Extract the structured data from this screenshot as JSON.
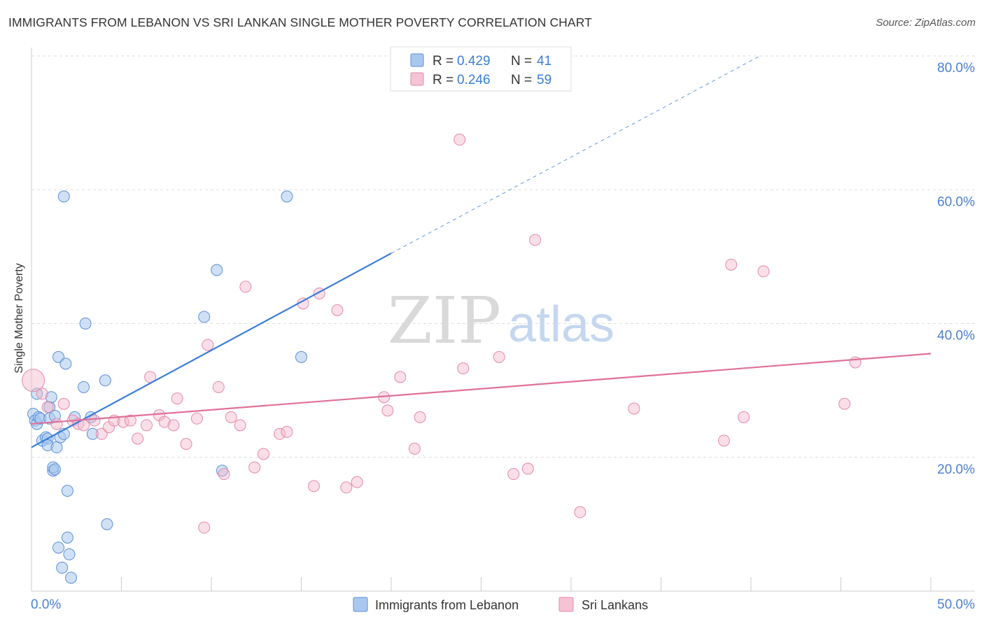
{
  "title": "IMMIGRANTS FROM LEBANON VS SRI LANKAN SINGLE MOTHER POVERTY CORRELATION CHART",
  "source": "Source: ZipAtlas.com",
  "watermark": {
    "zip": "ZIP",
    "atlas": "atlas"
  },
  "colors": {
    "blue": "#3b7dd8",
    "blue_fill": "#a9c8ef",
    "pink": "#e0709a",
    "pink_fill": "#f5b8cb",
    "tick_label": "#4a7fd1",
    "grid": "#dddddd"
  },
  "legend_top": [
    {
      "r_label": "R = ",
      "r_value": "0.429",
      "n_label": "N = ",
      "n_value": "41"
    },
    {
      "r_label": "R = ",
      "r_value": "0.246",
      "n_label": "N = ",
      "n_value": "59"
    }
  ],
  "chart_data": {
    "type": "scatter",
    "title": "IMMIGRANTS FROM LEBANON VS SRI LANKAN SINGLE MOTHER POVERTY CORRELATION CHART",
    "xlabel": "",
    "ylabel": "Single Mother Poverty",
    "xlim": [
      0,
      50
    ],
    "ylim": [
      0,
      80
    ],
    "x_tick_labels": [
      "0.0%",
      "50.0%"
    ],
    "y_ticks": [
      20,
      40,
      60,
      80
    ],
    "y_tick_labels": [
      "20.0%",
      "40.0%",
      "60.0%",
      "80.0%"
    ],
    "grid": "horizontal dashed",
    "legend_position": "bottom",
    "series": [
      {
        "name": "Immigrants from Lebanon",
        "color": "#3b7dd8",
        "r": 0.429,
        "n": 41,
        "trend": {
          "x": [
            0,
            20
          ],
          "y": [
            21.5,
            50.5
          ],
          "extended_to": [
            40.5,
            80
          ]
        },
        "points": [
          [
            0.1,
            26.5
          ],
          [
            0.2,
            25.5
          ],
          [
            0.3,
            25.0
          ],
          [
            0.3,
            29.5
          ],
          [
            0.4,
            26.0
          ],
          [
            0.5,
            25.8
          ],
          [
            0.6,
            22.5
          ],
          [
            0.8,
            23.0
          ],
          [
            0.9,
            22.8
          ],
          [
            1.0,
            27.5
          ],
          [
            1.0,
            25.8
          ],
          [
            0.9,
            21.8
          ],
          [
            1.1,
            29.0
          ],
          [
            1.2,
            18.0
          ],
          [
            1.3,
            26.2
          ],
          [
            1.2,
            18.5
          ],
          [
            1.4,
            21.5
          ],
          [
            1.3,
            18.2
          ],
          [
            1.5,
            35.0
          ],
          [
            1.5,
            6.5
          ],
          [
            1.6,
            23.0
          ],
          [
            1.7,
            3.5
          ],
          [
            1.8,
            59.0
          ],
          [
            1.8,
            23.5
          ],
          [
            1.9,
            34.0
          ],
          [
            2.0,
            15.0
          ],
          [
            2.0,
            8.0
          ],
          [
            2.1,
            5.5
          ],
          [
            2.2,
            2.0
          ],
          [
            2.9,
            30.5
          ],
          [
            3.0,
            40.0
          ],
          [
            3.3,
            26.0
          ],
          [
            3.4,
            23.5
          ],
          [
            4.1,
            31.5
          ],
          [
            4.2,
            10.0
          ],
          [
            9.6,
            41.0
          ],
          [
            10.3,
            48.0
          ],
          [
            10.6,
            18.0
          ],
          [
            14.2,
            59.0
          ],
          [
            15.0,
            35.0
          ],
          [
            2.4,
            26.0
          ]
        ]
      },
      {
        "name": "Sri Lankans",
        "color": "#e0709a",
        "r": 0.246,
        "n": 59,
        "trend": {
          "x": [
            0,
            50
          ],
          "y": [
            25.0,
            35.5
          ]
        },
        "points": [
          [
            0.1,
            31.5
          ],
          [
            0.6,
            29.5
          ],
          [
            0.9,
            27.5
          ],
          [
            1.4,
            25.0
          ],
          [
            1.8,
            28.0
          ],
          [
            2.3,
            25.5
          ],
          [
            2.6,
            25.0
          ],
          [
            2.9,
            24.8
          ],
          [
            3.5,
            25.5
          ],
          [
            3.9,
            23.5
          ],
          [
            4.3,
            24.5
          ],
          [
            4.6,
            25.5
          ],
          [
            5.1,
            25.3
          ],
          [
            5.5,
            25.5
          ],
          [
            5.9,
            22.8
          ],
          [
            6.4,
            24.8
          ],
          [
            6.6,
            32.0
          ],
          [
            7.1,
            26.3
          ],
          [
            7.4,
            25.3
          ],
          [
            7.9,
            24.8
          ],
          [
            8.1,
            28.8
          ],
          [
            8.6,
            22.0
          ],
          [
            9.2,
            25.8
          ],
          [
            9.6,
            9.5
          ],
          [
            9.8,
            36.8
          ],
          [
            10.4,
            30.5
          ],
          [
            10.7,
            17.5
          ],
          [
            11.1,
            26.0
          ],
          [
            11.6,
            24.8
          ],
          [
            11.9,
            45.5
          ],
          [
            12.4,
            18.5
          ],
          [
            12.9,
            20.5
          ],
          [
            13.8,
            23.5
          ],
          [
            14.2,
            23.8
          ],
          [
            15.1,
            43.0
          ],
          [
            15.7,
            15.7
          ],
          [
            16.0,
            44.5
          ],
          [
            17.0,
            42.0
          ],
          [
            17.5,
            15.5
          ],
          [
            18.1,
            16.3
          ],
          [
            19.6,
            29.0
          ],
          [
            19.8,
            27.0
          ],
          [
            20.5,
            32.0
          ],
          [
            21.3,
            21.3
          ],
          [
            21.6,
            26.0
          ],
          [
            23.8,
            67.5
          ],
          [
            24.0,
            33.3
          ],
          [
            26.0,
            35.0
          ],
          [
            26.8,
            17.5
          ],
          [
            27.6,
            18.3
          ],
          [
            28.0,
            52.5
          ],
          [
            30.5,
            11.8
          ],
          [
            33.5,
            27.3
          ],
          [
            38.5,
            22.5
          ],
          [
            38.9,
            48.8
          ],
          [
            39.6,
            26.0
          ],
          [
            40.7,
            47.8
          ],
          [
            45.2,
            28.0
          ],
          [
            45.8,
            34.2
          ]
        ]
      }
    ]
  },
  "legend_bottom": [
    "Immigrants from Lebanon",
    "Sri Lankans"
  ]
}
